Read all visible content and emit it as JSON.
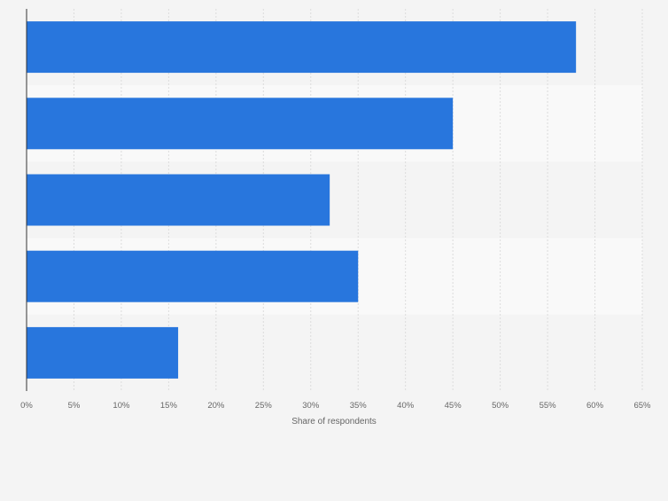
{
  "chart_data": {
    "type": "bar",
    "orientation": "horizontal",
    "categories": [
      "",
      "",
      "",
      "",
      ""
    ],
    "values": [
      58,
      45,
      32,
      35,
      16
    ],
    "xlabel": "Share of respondents",
    "ylabel": "",
    "xlim": [
      0,
      65
    ],
    "ticks": [
      0,
      5,
      10,
      15,
      20,
      25,
      30,
      35,
      40,
      45,
      50,
      55,
      60,
      65
    ],
    "tick_labels": [
      "0%",
      "5%",
      "10%",
      "15%",
      "20%",
      "25%",
      "30%",
      "35%",
      "40%",
      "45%",
      "50%",
      "55%",
      "60%",
      "65%"
    ],
    "grid": true,
    "legend": "none",
    "colors": {
      "bar": "#2876dd",
      "band_dark": "#f4f4f4",
      "band_light": "#f9f9f9",
      "grid": "#dcdcdc",
      "axis": "#333333",
      "text": "#666666"
    }
  }
}
